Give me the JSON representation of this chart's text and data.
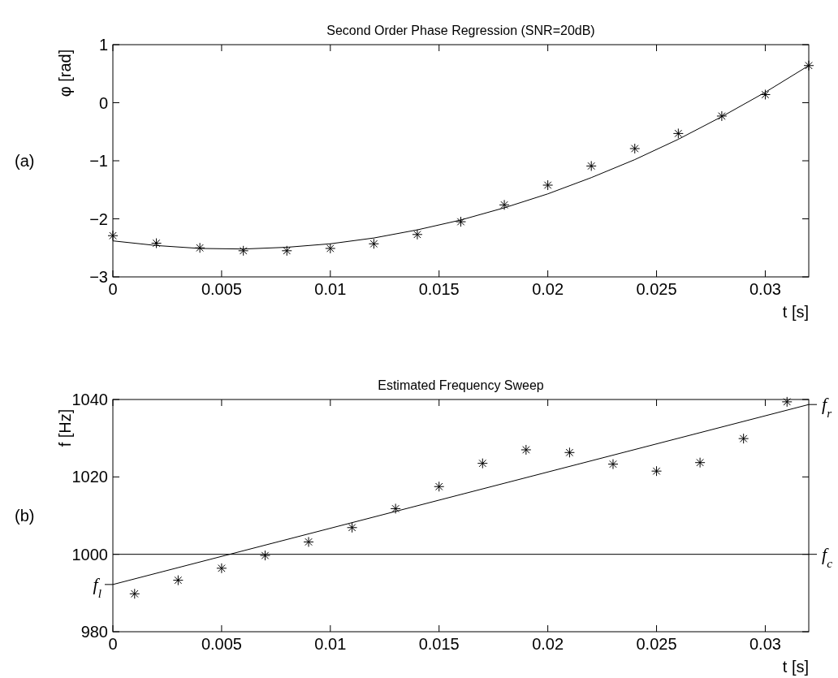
{
  "chart_data": [
    {
      "type": "scatter",
      "title": "Second Order Phase Regression   (SNR=20dB)",
      "xlabel": "t [s]",
      "ylabel": "φ [rad]",
      "annotations": [
        "(a)"
      ],
      "marker": "cross",
      "grid": false,
      "xlim": [
        0,
        0.032
      ],
      "xticks": [
        0,
        0.005,
        0.01,
        0.015,
        0.02,
        0.025,
        0.03
      ],
      "ylim": [
        -3,
        1
      ],
      "yticks": [
        -3,
        -2,
        -1,
        0,
        1
      ],
      "series": [
        {
          "color": "#000000",
          "x": [
            0,
            0.002,
            0.004,
            0.006,
            0.008,
            0.01,
            0.012,
            0.014,
            0.016,
            0.018,
            0.02,
            0.022,
            0.024,
            0.026,
            0.028,
            0.03,
            0.032
          ],
          "values": [
            -2.29,
            -2.42,
            -2.5,
            -2.55,
            -2.55,
            -2.51,
            -2.43,
            -2.27,
            -2.05,
            -1.76,
            -1.42,
            -1.09,
            -0.79,
            -0.53,
            -0.23,
            0.14,
            0.64
          ]
        },
        {
          "type": "line",
          "color": "#000000",
          "marker": "none",
          "line_style": "solid",
          "x": [
            0,
            0.002,
            0.004,
            0.006,
            0.008,
            0.01,
            0.012,
            0.014,
            0.016,
            0.018,
            0.02,
            0.022,
            0.024,
            0.026,
            0.028,
            0.03,
            0.032
          ],
          "values": [
            -2.38,
            -2.46,
            -2.51,
            -2.52,
            -2.49,
            -2.43,
            -2.33,
            -2.19,
            -2.02,
            -1.81,
            -1.57,
            -1.29,
            -0.98,
            -0.63,
            -0.24,
            0.18,
            0.64
          ]
        }
      ]
    },
    {
      "type": "scatter",
      "title": "Estimated Frequency Sweep",
      "xlabel": "t [s]",
      "ylabel": "f [Hz]",
      "annotations": [
        "(b)",
        {
          "text": "f$_{r}$",
          "x": 0.032,
          "y": 1038.7
        }
      ],
      "marker": "cross",
      "grid": false,
      "xlim": [
        0,
        0.032
      ],
      "xticks": [
        0,
        0.005,
        0.01,
        0.015,
        0.02,
        0.025,
        0.03
      ],
      "ylim": [
        980,
        1040
      ],
      "yticks": [
        980,
        {
          "value": 992.2,
          "label": "f$_{l}$"
        },
        1000,
        1020,
        1040
      ],
      "ref_lines": [
        {
          "axis": "y",
          "value": 1000,
          "label": "f$_{c}$",
          "color": "#000000",
          "line_style": "solid"
        }
      ],
      "series": [
        {
          "color": "#000000",
          "x": [
            0.001,
            0.003,
            0.005,
            0.007,
            0.009,
            0.011,
            0.013,
            0.015,
            0.017,
            0.019,
            0.021,
            0.023,
            0.025,
            0.027,
            0.029,
            0.031
          ],
          "values": [
            989.8,
            993.3,
            996.4,
            999.7,
            1003.2,
            1006.9,
            1011.8,
            1017.5,
            1023.5,
            1027.0,
            1026.3,
            1023.3,
            1021.5,
            1023.7,
            1029.9,
            1039.4
          ]
        },
        {
          "type": "line",
          "color": "#000000",
          "marker": "none",
          "line_style": "solid",
          "x": [
            0,
            0.032
          ],
          "values": [
            992.2,
            1038.7
          ]
        }
      ]
    }
  ]
}
